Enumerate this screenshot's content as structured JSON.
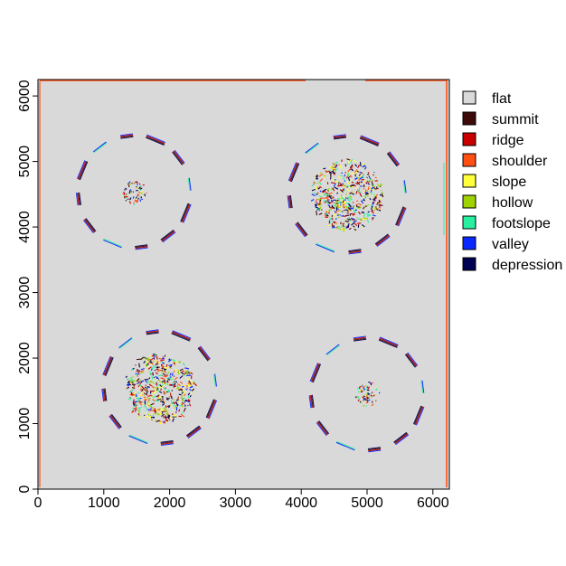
{
  "chart_data": {
    "type": "heatmap",
    "title": "",
    "xlabel": "",
    "ylabel": "",
    "xlim": [
      0,
      6250
    ],
    "ylim": [
      0,
      6250
    ],
    "x_ticks": [
      {
        "value": 0,
        "label": "0"
      },
      {
        "value": 1000,
        "label": "1000"
      },
      {
        "value": 2000,
        "label": "2000"
      },
      {
        "value": 3000,
        "label": "3000"
      },
      {
        "value": 4000,
        "label": "4000"
      },
      {
        "value": 5000,
        "label": "5000"
      },
      {
        "value": 6000,
        "label": "6000"
      }
    ],
    "y_ticks": [
      {
        "value": 0,
        "label": "0"
      },
      {
        "value": 1000,
        "label": "1000"
      },
      {
        "value": 2000,
        "label": "2000"
      },
      {
        "value": 3000,
        "label": "3000"
      },
      {
        "value": 4000,
        "label": "4000"
      },
      {
        "value": 5000,
        "label": "5000"
      },
      {
        "value": 6000,
        "label": "6000"
      }
    ],
    "background_class": "flat",
    "legend_placement": "right",
    "classes": [
      {
        "name": "flat",
        "color": "#d9d9d9"
      },
      {
        "name": "summit",
        "color": "#3d0a0a"
      },
      {
        "name": "ridge",
        "color": "#c80000"
      },
      {
        "name": "shoulder",
        "color": "#ff5014"
      },
      {
        "name": "slope",
        "color": "#ffff3c"
      },
      {
        "name": "hollow",
        "color": "#a0d200"
      },
      {
        "name": "footslope",
        "color": "#28f0a0"
      },
      {
        "name": "valley",
        "color": "#0a28ff"
      },
      {
        "name": "depression",
        "color": "#000050"
      }
    ],
    "features": [
      {
        "id": "cluster-nw",
        "center": [
          1460,
          4540
        ],
        "ring_radius": 850,
        "spokes": 12,
        "rough_patch": false
      },
      {
        "id": "cluster-ne",
        "center": [
          4700,
          4500
        ],
        "ring_radius": 880,
        "spokes": 12,
        "rough_patch": true
      },
      {
        "id": "cluster-sw",
        "center": [
          1850,
          1550
        ],
        "ring_radius": 850,
        "spokes": 12,
        "rough_patch": true
      },
      {
        "id": "cluster-se",
        "center": [
          5000,
          1450
        ],
        "ring_radius": 850,
        "spokes": 12,
        "rough_patch": false
      }
    ]
  }
}
